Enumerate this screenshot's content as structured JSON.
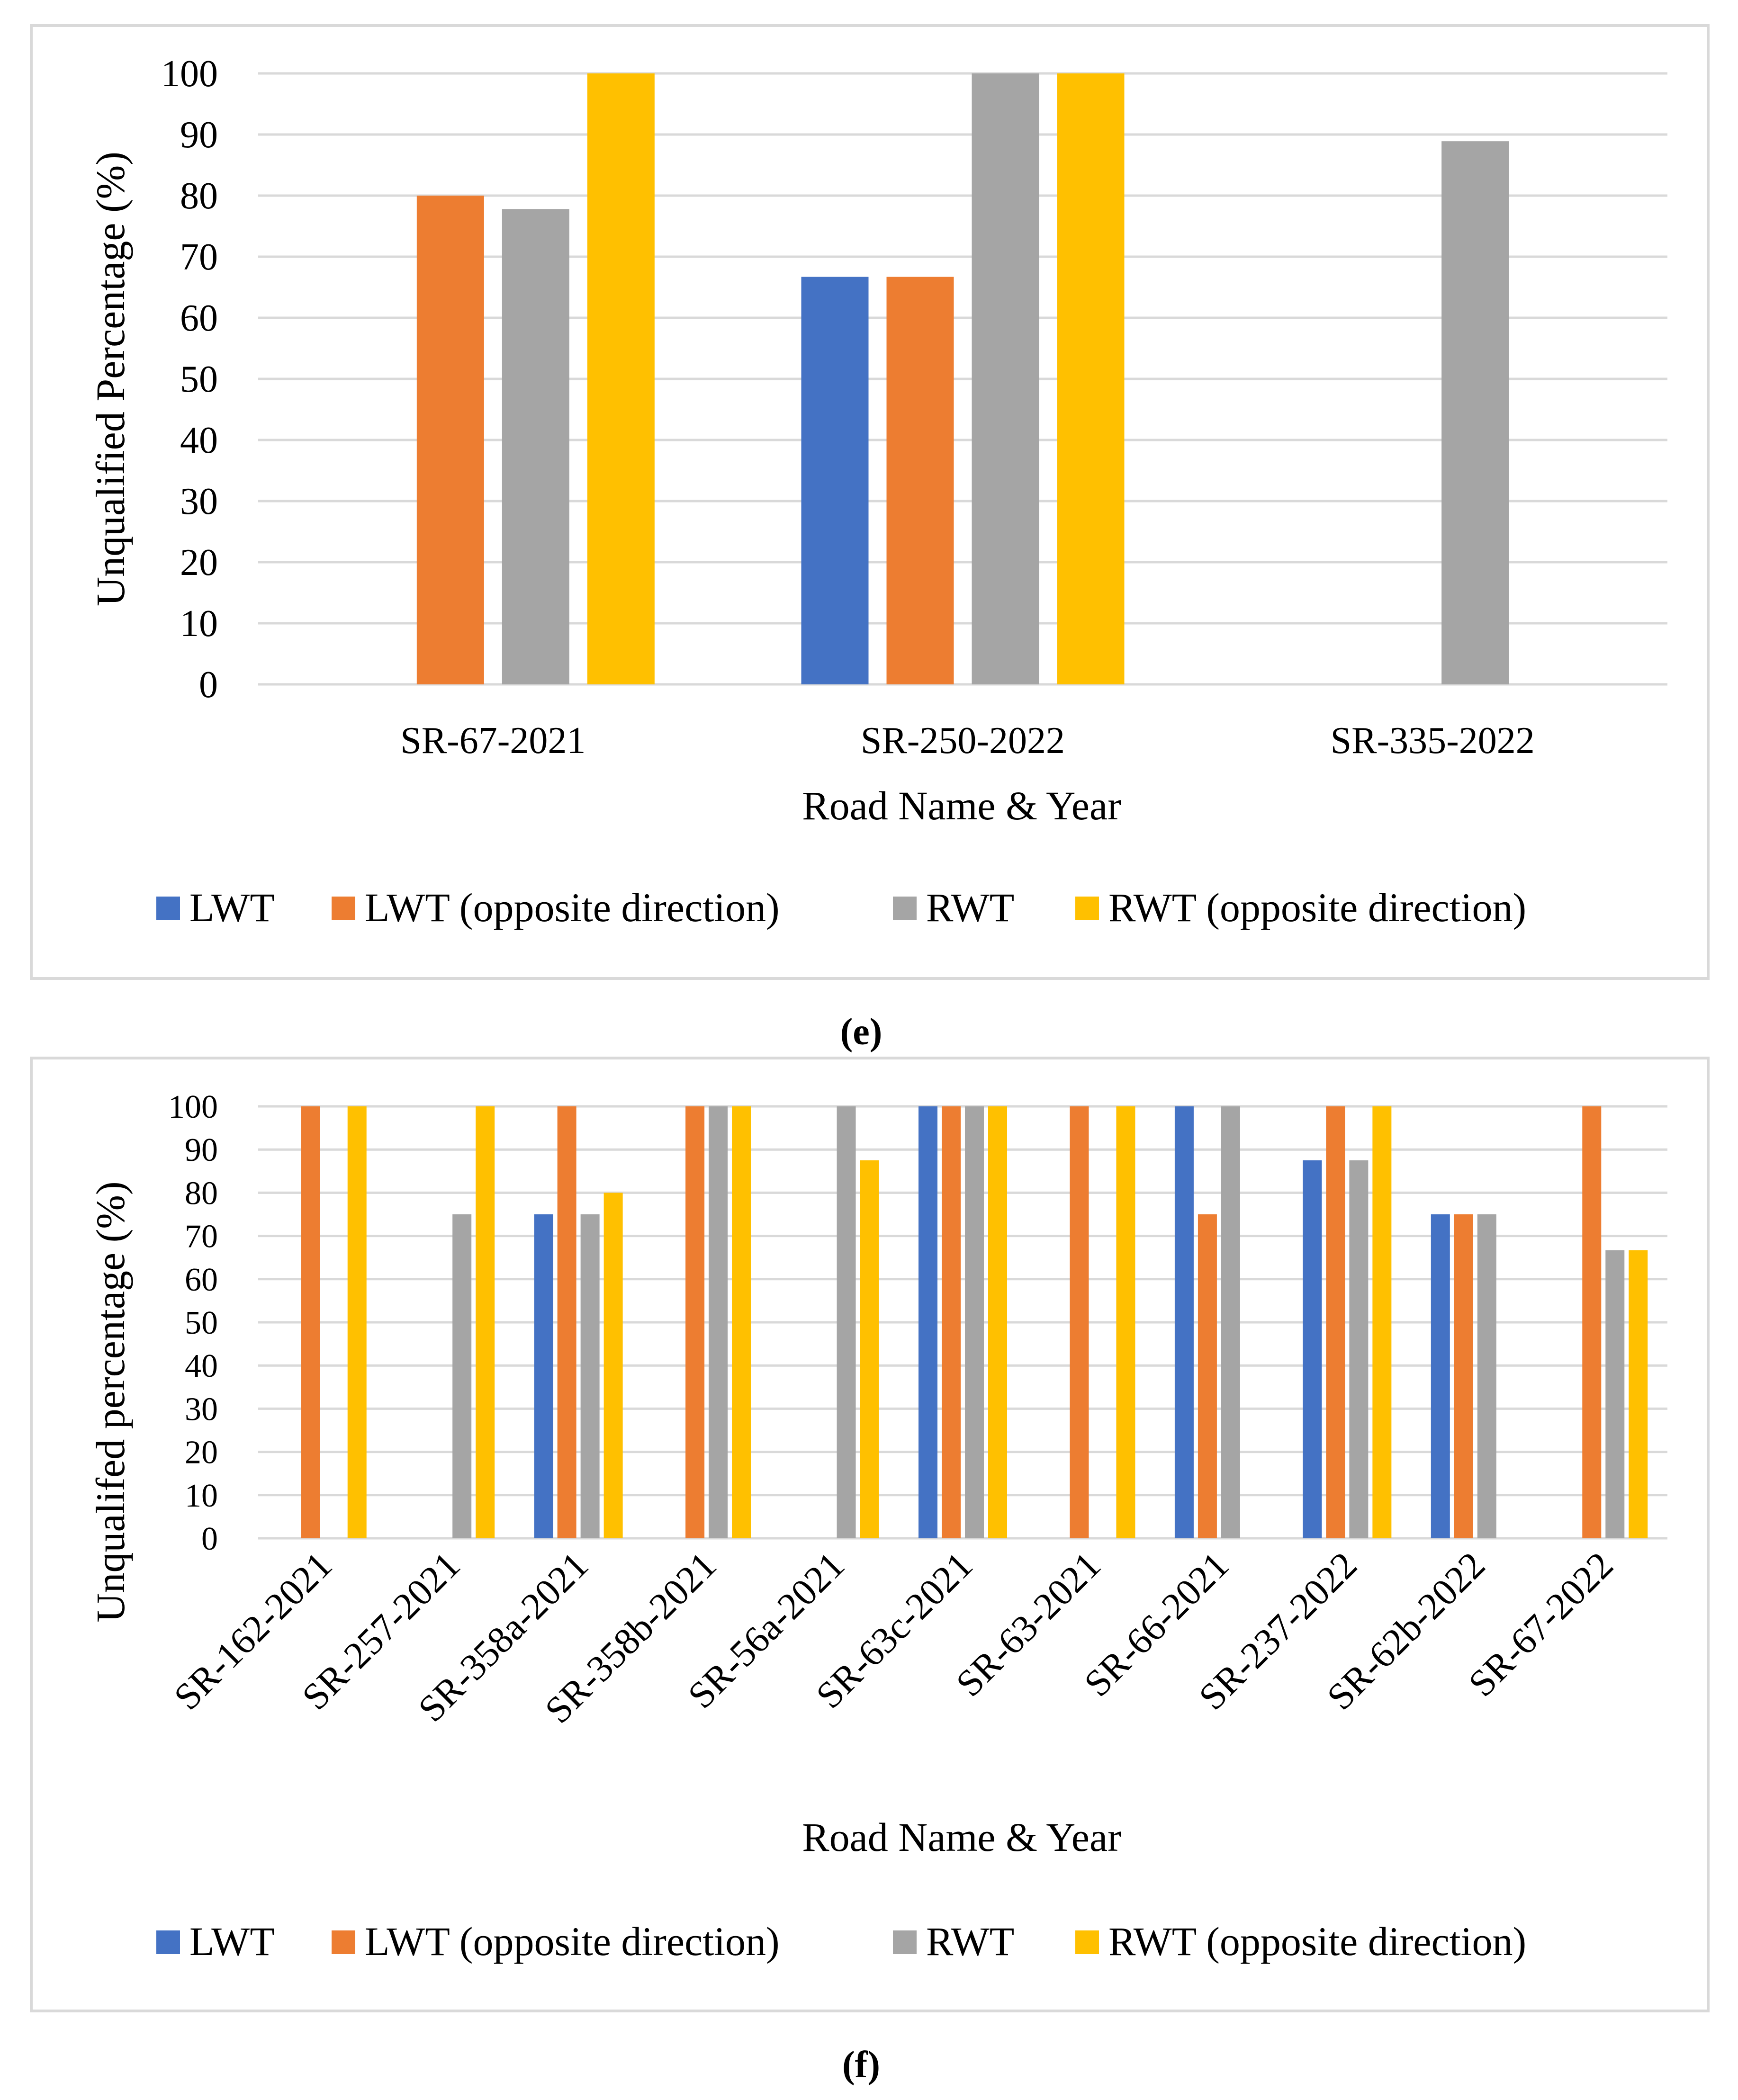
{
  "chart_data": [
    {
      "type": "bar",
      "panel_label": "(e)",
      "categories": [
        "SR-67-2021",
        "SR-250-2022",
        "SR-335-2022"
      ],
      "series": [
        {
          "name": "LWT",
          "values": [
            0,
            66.7,
            0
          ]
        },
        {
          "name": "LWT (opposite direction)",
          "values": [
            80,
            66.7,
            0
          ]
        },
        {
          "name": "RWT",
          "values": [
            77.8,
            100,
            88.9
          ]
        },
        {
          "name": "RWT (opposite direction)",
          "values": [
            100,
            100,
            0
          ]
        }
      ],
      "colors": [
        "#4472c4",
        "#ed7d31",
        "#a5a5a5",
        "#ffc000"
      ],
      "xlabel": "Road Name & Year",
      "ylabel": "Unqualified Percentage (%)",
      "ylim": [
        0,
        100
      ],
      "yticks": [
        "0",
        "10",
        "20",
        "30",
        "40",
        "50",
        "60",
        "70",
        "80",
        "90",
        "100"
      ],
      "grid": true,
      "legend_position": "bottom"
    },
    {
      "type": "bar",
      "panel_label": "(f)",
      "categories": [
        "SR-162-2021",
        "SR-257-2021",
        "SR-358a-2021",
        "SR-358b-2021",
        "SR-56a-2021",
        "SR-63c-2021",
        "SR-63-2021",
        "SR-66-2021",
        "SR-237-2022",
        "SR-62b-2022",
        "SR-67-2022"
      ],
      "series": [
        {
          "name": "LWT",
          "values": [
            0,
            0,
            75,
            0,
            0,
            100,
            0,
            100,
            87.5,
            75,
            0
          ]
        },
        {
          "name": "LWT (opposite direction)",
          "values": [
            100,
            0,
            100,
            100,
            0,
            100,
            100,
            75,
            100,
            75,
            100
          ]
        },
        {
          "name": "RWT",
          "values": [
            0,
            75,
            75,
            100,
            100,
            100,
            0,
            100,
            87.5,
            75,
            66.7
          ]
        },
        {
          "name": "RWT (opposite direction)",
          "values": [
            100,
            100,
            80,
            100,
            87.5,
            100,
            100,
            0,
            100,
            0,
            66.7
          ]
        }
      ],
      "colors": [
        "#4472c4",
        "#ed7d31",
        "#a5a5a5",
        "#ffc000"
      ],
      "xlabel": "Road Name & Year",
      "ylabel": "Unqualifed percentage (%)",
      "ylim": [
        0,
        100
      ],
      "yticks": [
        "0",
        "10",
        "20",
        "30",
        "40",
        "50",
        "60",
        "70",
        "80",
        "90",
        "100"
      ],
      "grid": true,
      "legend_position": "bottom"
    }
  ]
}
